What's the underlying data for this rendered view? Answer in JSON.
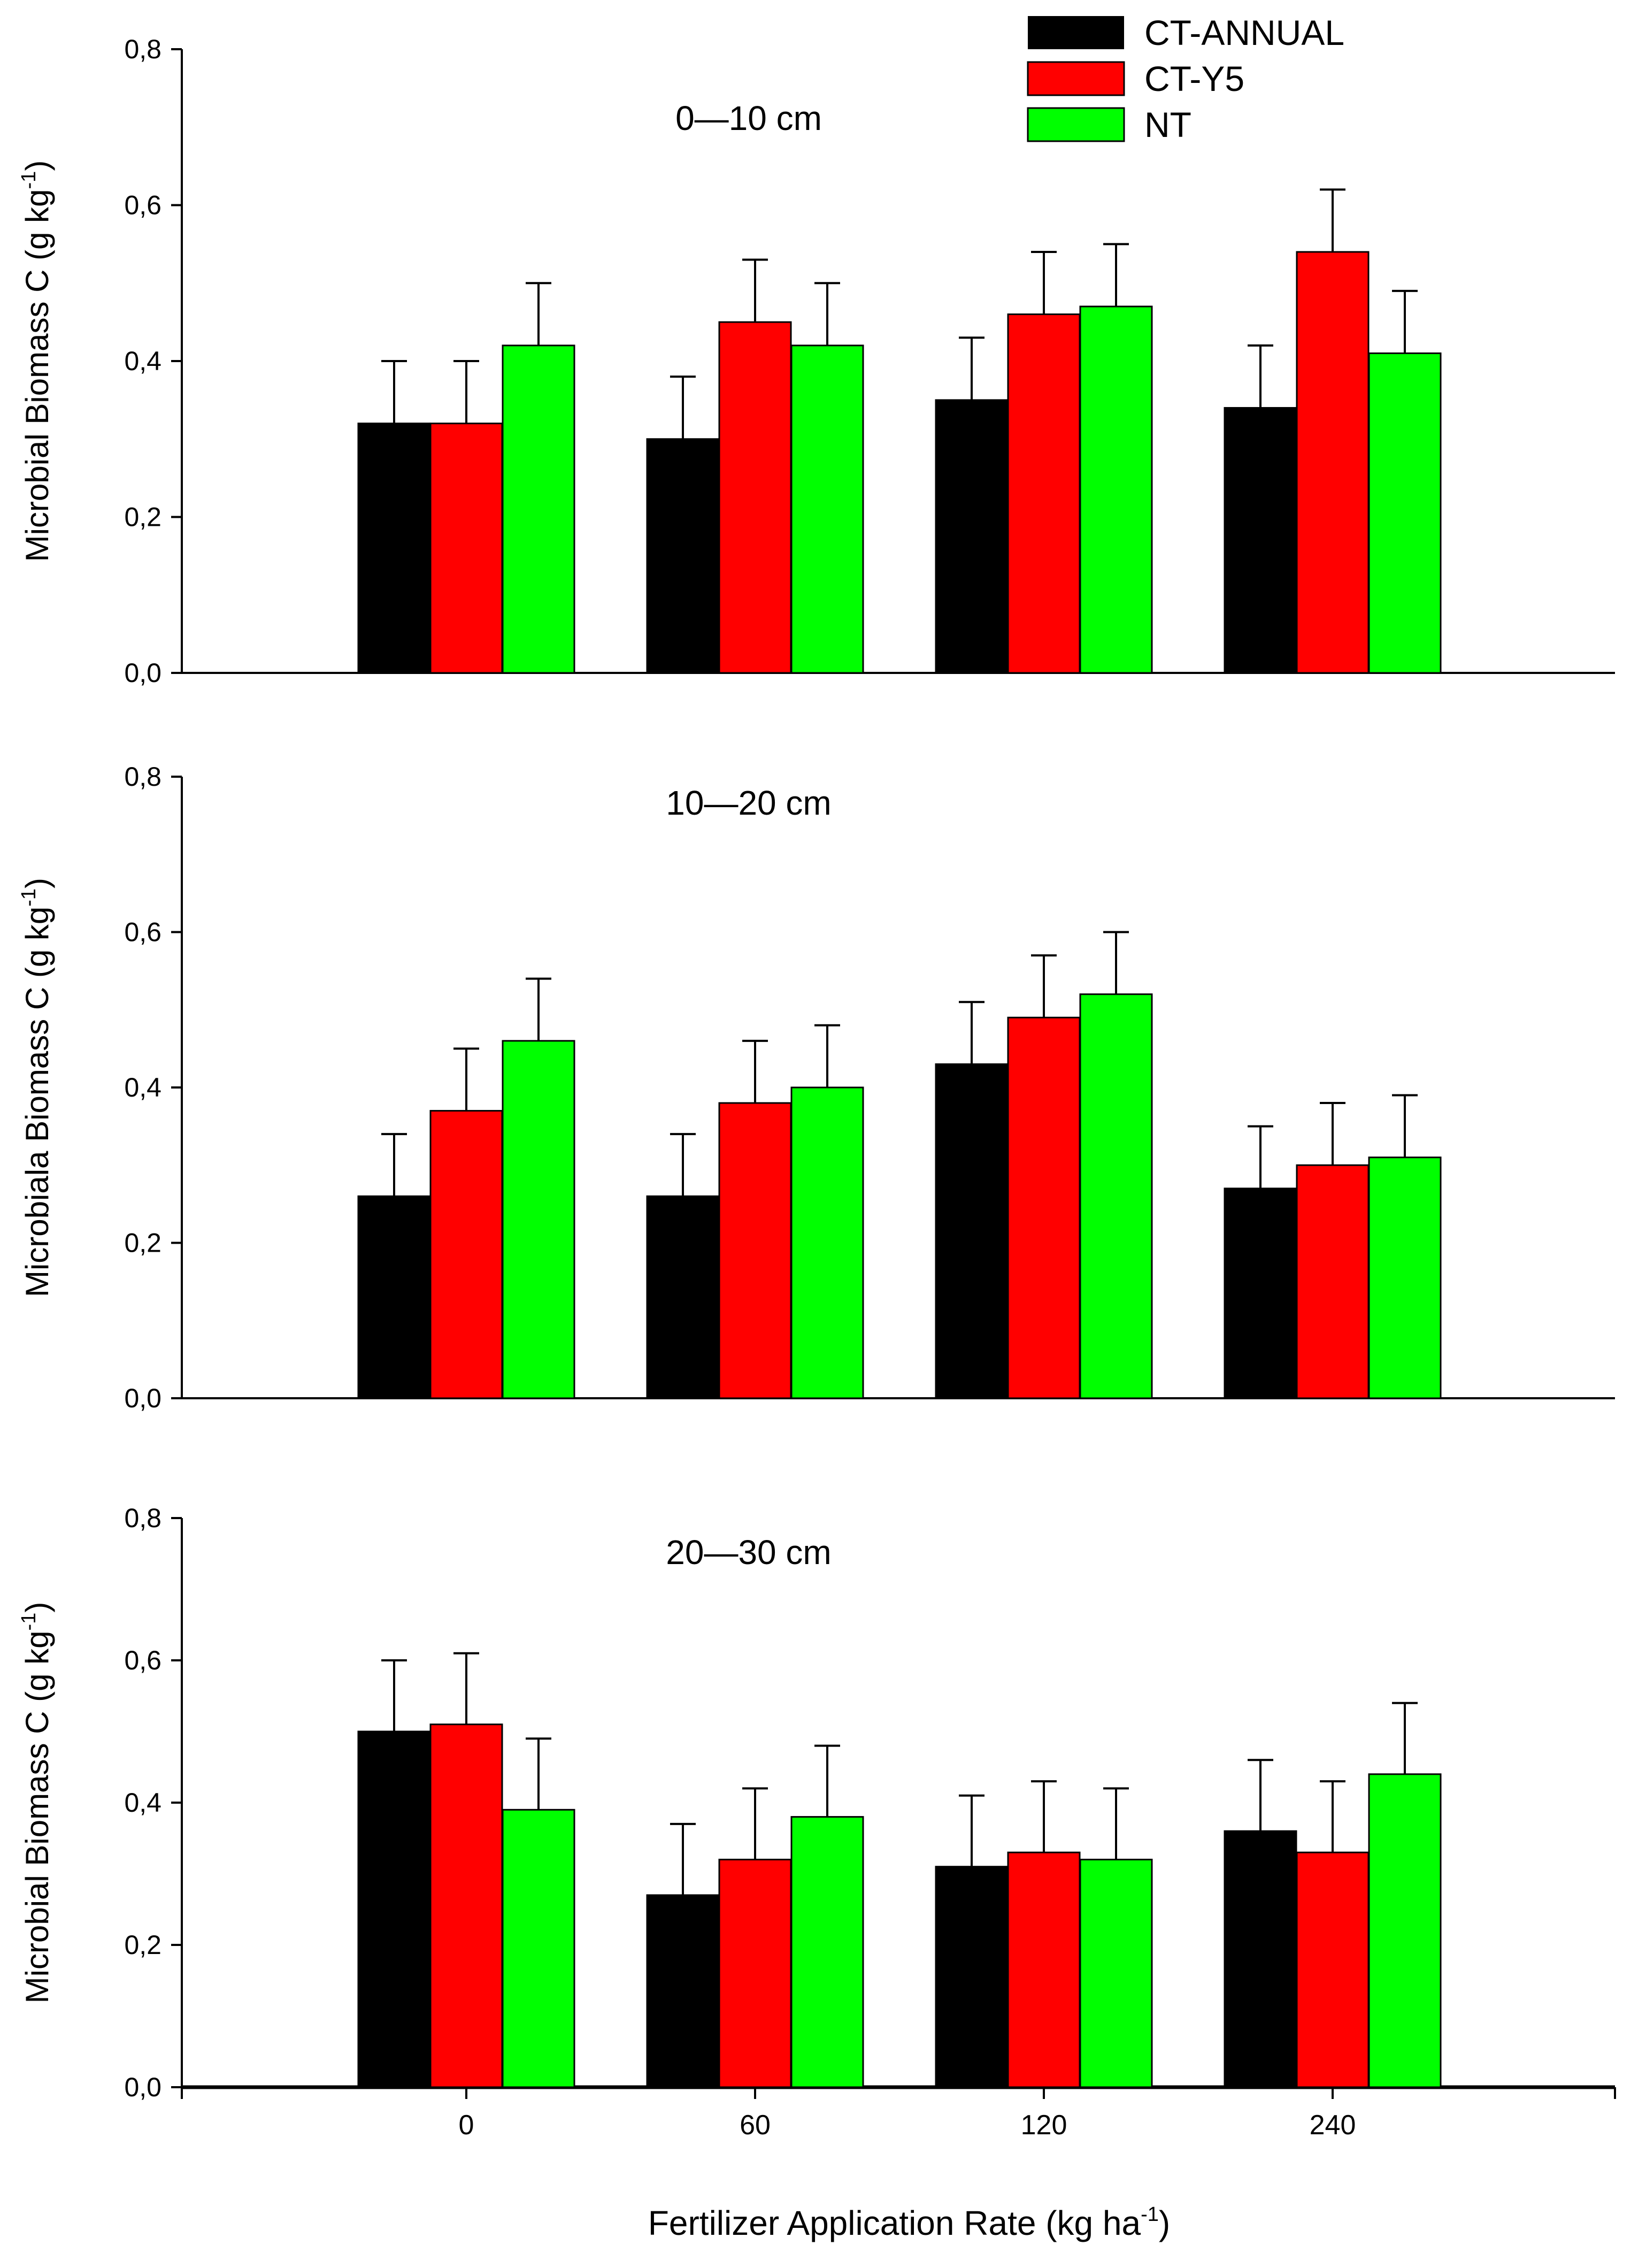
{
  "chart_data": {
    "type": "bar",
    "figure_layout": "three vertically stacked grouped bar charts with shared x axis",
    "categories": [
      "0",
      "60",
      "120",
      "240"
    ],
    "xlabel": "Fertilizer Application Rate (kg ha",
    "xlabel_sup": "-1",
    "xlabel_suffix": ")",
    "ylim": [
      0,
      0.8
    ],
    "yticks": [
      "0,0",
      "0,2",
      "0,4",
      "0,6",
      "0,8"
    ],
    "legend": {
      "position": "top-right",
      "entries": [
        {
          "name": "CT-ANNUAL",
          "color": "#000000"
        },
        {
          "name": "CT-Y5",
          "color": "#ff0000"
        },
        {
          "name": "NT",
          "color": "#00ff00"
        }
      ]
    },
    "panels": [
      {
        "title": "0—10 cm",
        "ylabel": "Microbial Biomass C (g kg",
        "ylabel_sup": "-1",
        "ylabel_suffix": ")",
        "series": [
          {
            "name": "CT-ANNUAL",
            "values": [
              0.32,
              0.3,
              0.35,
              0.34
            ],
            "errors": [
              0.08,
              0.08,
              0.08,
              0.08
            ]
          },
          {
            "name": "CT-Y5",
            "values": [
              0.32,
              0.45,
              0.46,
              0.54
            ],
            "errors": [
              0.08,
              0.08,
              0.08,
              0.08
            ]
          },
          {
            "name": "NT",
            "values": [
              0.42,
              0.42,
              0.47,
              0.41
            ],
            "errors": [
              0.08,
              0.08,
              0.08,
              0.08
            ]
          }
        ]
      },
      {
        "title": "10—20 cm",
        "ylabel": "Microbiala Biomass C (g kg",
        "ylabel_sup": "-1",
        "ylabel_suffix": ")",
        "series": [
          {
            "name": "CT-ANNUAL",
            "values": [
              0.26,
              0.26,
              0.43,
              0.27
            ],
            "errors": [
              0.08,
              0.08,
              0.08,
              0.08
            ]
          },
          {
            "name": "CT-Y5",
            "values": [
              0.37,
              0.38,
              0.49,
              0.3
            ],
            "errors": [
              0.08,
              0.08,
              0.08,
              0.08
            ]
          },
          {
            "name": "NT",
            "values": [
              0.46,
              0.4,
              0.52,
              0.31
            ],
            "errors": [
              0.08,
              0.08,
              0.08,
              0.08
            ]
          }
        ]
      },
      {
        "title": "20—30 cm",
        "ylabel": "Microbial Biomass C (g kg",
        "ylabel_sup": "-1",
        "ylabel_suffix": ")",
        "series": [
          {
            "name": "CT-ANNUAL",
            "values": [
              0.5,
              0.27,
              0.31,
              0.36
            ],
            "errors": [
              0.1,
              0.1,
              0.1,
              0.1
            ]
          },
          {
            "name": "CT-Y5",
            "values": [
              0.51,
              0.32,
              0.33,
              0.33
            ],
            "errors": [
              0.1,
              0.1,
              0.1,
              0.1
            ]
          },
          {
            "name": "NT",
            "values": [
              0.39,
              0.38,
              0.32,
              0.44
            ],
            "errors": [
              0.1,
              0.1,
              0.1,
              0.1
            ]
          }
        ]
      }
    ]
  }
}
